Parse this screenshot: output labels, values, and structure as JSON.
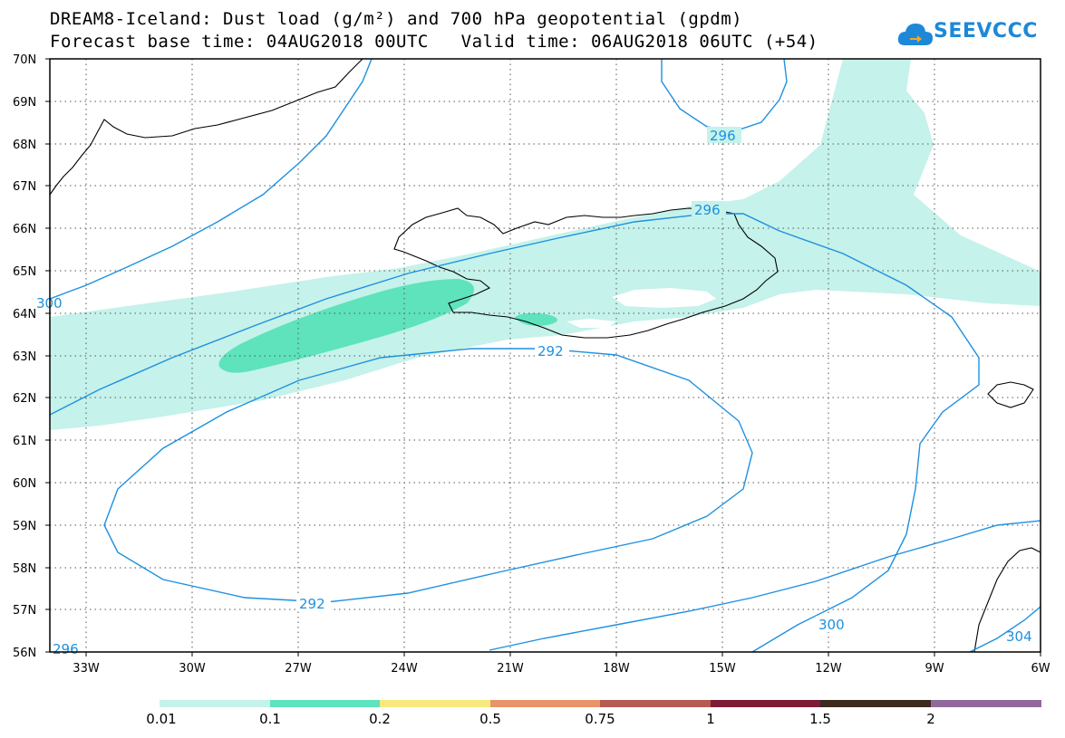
{
  "title": {
    "line1": "DREAM8-Iceland: Dust load (g/m²) and 700 hPa geopotential (gpdm)",
    "line2": "Forecast base time: 04AUG2018 00UTC   Valid time: 06AUG2018 06UTC (+54)"
  },
  "logo": {
    "text": "SEEVCCC",
    "icon": "cloud-logo-icon"
  },
  "axes": {
    "lat_labels": [
      "70N",
      "69N",
      "68N",
      "67N",
      "66N",
      "65N",
      "64N",
      "63N",
      "62N",
      "61N",
      "60N",
      "59N",
      "58N",
      "57N",
      "56N"
    ],
    "lon_labels": [
      "33W",
      "30W",
      "27W",
      "24W",
      "21W",
      "18W",
      "15W",
      "12W",
      "9W",
      "6W"
    ]
  },
  "contours": {
    "labels": [
      "292",
      "292",
      "296",
      "296",
      "296",
      "300",
      "300",
      "304"
    ]
  },
  "legend": {
    "labels": [
      "0.01",
      "0.1",
      "0.2",
      "0.5",
      "0.75",
      "1",
      "1.5",
      "2"
    ],
    "colors": [
      "#c5f2ea",
      "#5ee3bc",
      "#f6ea7e",
      "#e8946a",
      "#b45b52",
      "#7c1c37",
      "#3c2a1e",
      "#916a9c"
    ]
  },
  "colors": {
    "contour": "#1e90e0",
    "coast": "#000000",
    "land_dust_light": "#c5f2ea",
    "dust_medium": "#5ee3bc"
  }
}
